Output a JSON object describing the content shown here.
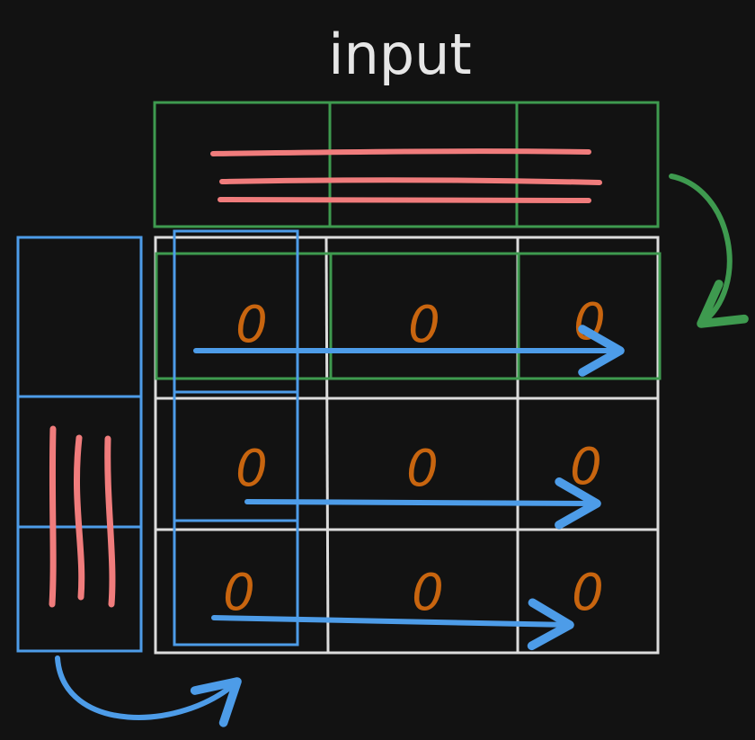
{
  "title": "input",
  "grid": {
    "values": [
      [
        "0",
        "0",
        "0"
      ],
      [
        "0",
        "0",
        "0"
      ],
      [
        "0",
        "0",
        "0"
      ]
    ]
  },
  "colors": {
    "background": "#121212",
    "grid": "#dcdcdc",
    "input_row": "#3e9a4f",
    "input_column": "#4d9ce8",
    "arrow_blue": "#4d9ce8",
    "arrow_green": "#3e9a4f",
    "data_strokes": "#f07c7c",
    "cell_value": "#c8650f"
  }
}
